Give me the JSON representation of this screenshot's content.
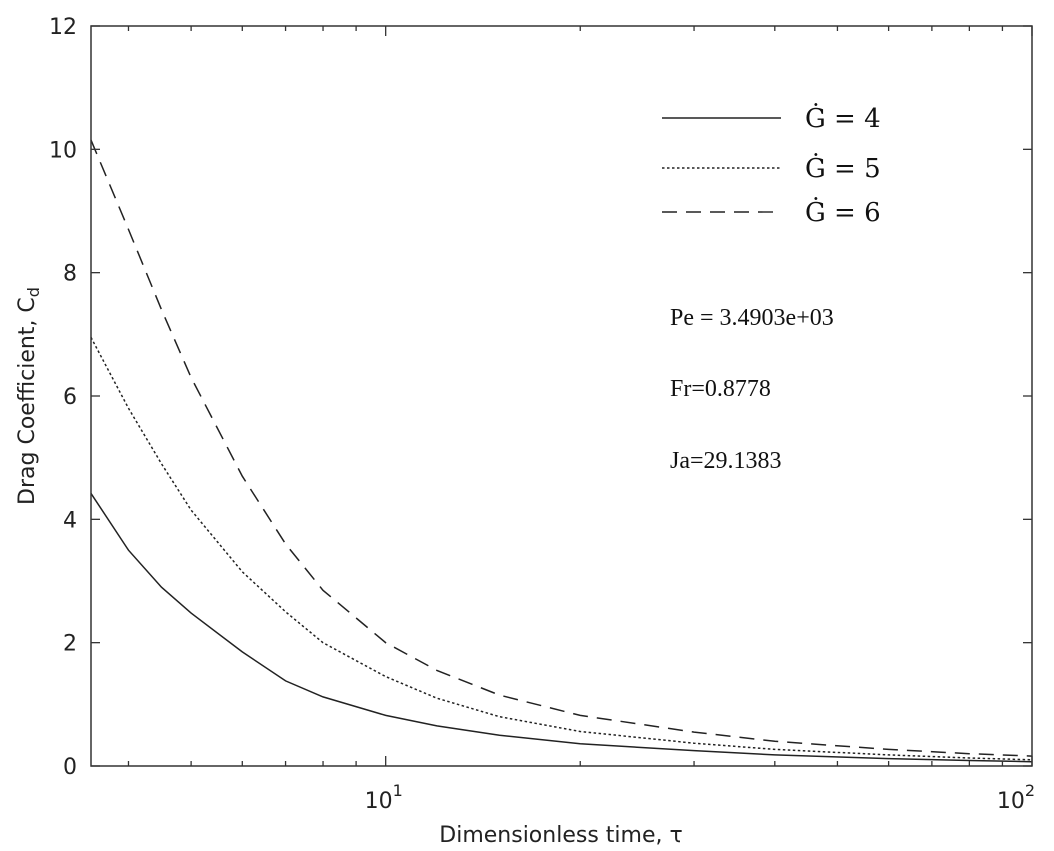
{
  "chart_data": {
    "type": "line",
    "title": "",
    "xlabel": "Dimensionless time, τ",
    "ylabel": "Drag Coefficient, C",
    "ylabel_subscript": "d",
    "xscale": "log",
    "xlim": [
      3.5,
      100
    ],
    "ylim": [
      0,
      12
    ],
    "yticks": [
      0,
      2,
      4,
      6,
      8,
      10,
      12
    ],
    "xticks": [
      {
        "value": 10,
        "base": "10",
        "exp": "1"
      },
      {
        "value": 100,
        "base": "10",
        "exp": "2"
      }
    ],
    "grid": false,
    "legend_position": "top-right",
    "series": [
      {
        "name": "Ġ = 4",
        "style": "solid",
        "x": [
          3.5,
          4.0,
          4.5,
          5.0,
          6.0,
          7.0,
          8.0,
          10.0,
          12.0,
          15.0,
          20.0,
          30.0,
          40.0,
          60.0,
          80.0,
          100.0
        ],
        "y": [
          4.42,
          3.5,
          2.9,
          2.48,
          1.85,
          1.38,
          1.12,
          0.82,
          0.65,
          0.5,
          0.36,
          0.25,
          0.18,
          0.12,
          0.09,
          0.07
        ]
      },
      {
        "name": "Ġ = 5",
        "style": "dotted",
        "x": [
          3.5,
          4.0,
          4.5,
          5.0,
          6.0,
          7.0,
          8.0,
          10.0,
          12.0,
          15.0,
          20.0,
          30.0,
          40.0,
          60.0,
          80.0,
          100.0
        ],
        "y": [
          6.95,
          5.8,
          4.9,
          4.15,
          3.15,
          2.5,
          2.0,
          1.45,
          1.1,
          0.8,
          0.56,
          0.37,
          0.27,
          0.18,
          0.13,
          0.1
        ]
      },
      {
        "name": "Ġ = 6",
        "style": "dashed",
        "x": [
          3.5,
          4.0,
          4.5,
          5.0,
          6.0,
          7.0,
          8.0,
          10.0,
          12.0,
          15.0,
          20.0,
          30.0,
          40.0,
          60.0,
          80.0,
          100.0
        ],
        "y": [
          10.15,
          8.7,
          7.4,
          6.3,
          4.7,
          3.6,
          2.85,
          2.0,
          1.55,
          1.15,
          0.82,
          0.55,
          0.4,
          0.27,
          0.2,
          0.16
        ]
      }
    ],
    "annotations": [
      {
        "text": "Pe =  3.4903e+03"
      },
      {
        "text": "Fr=0.8778"
      },
      {
        "text": "Ja=29.1383"
      }
    ]
  }
}
